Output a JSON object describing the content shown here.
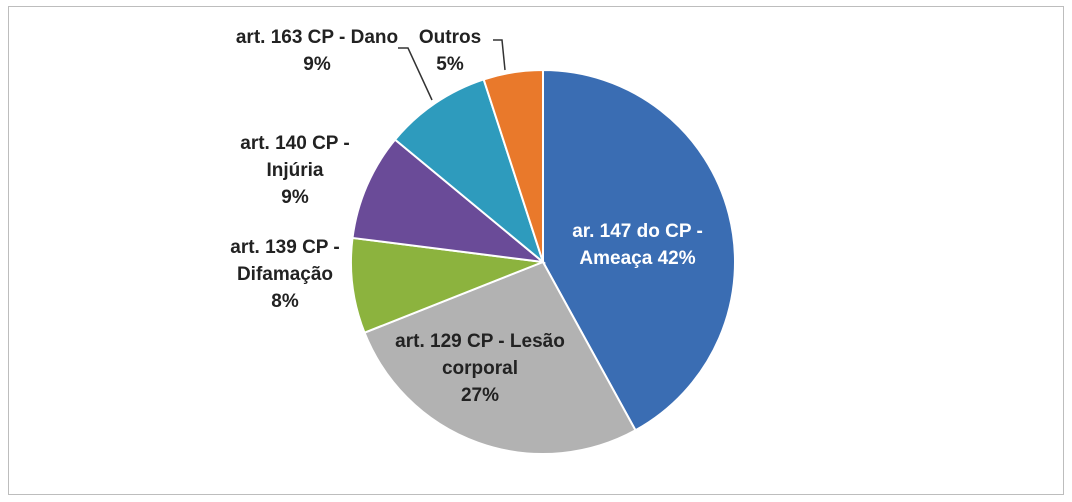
{
  "chart_data": {
    "type": "pie",
    "categories": [
      "ar. 147  do CP - Ameaça",
      "art. 129 CP - Lesão corporal",
      "art. 139 CP - Difamação",
      "art. 140 CP - Injúria",
      "art. 163 CP - Dano",
      "Outros"
    ],
    "values": [
      42,
      27,
      8,
      9,
      9,
      5
    ],
    "value_labels": [
      "42%",
      "27%",
      "8%",
      "9%",
      "9%",
      "5%"
    ],
    "colors": [
      "#3a6db3",
      "#b2b2b2",
      "#8cb33e",
      "#6a4b98",
      "#2e9bbd",
      "#e9792b"
    ]
  }
}
